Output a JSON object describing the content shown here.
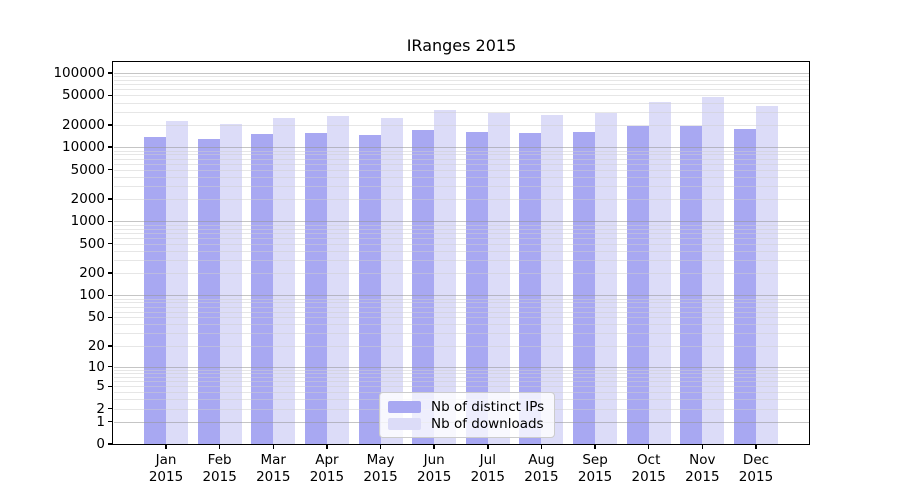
{
  "title": "IRanges 2015",
  "chart_data": {
    "type": "bar",
    "title": "IRanges 2015",
    "categories": [
      "Jan",
      "Feb",
      "Mar",
      "Apr",
      "May",
      "Jun",
      "Jul",
      "Aug",
      "Sep",
      "Oct",
      "Nov",
      "Dec"
    ],
    "year": "2015",
    "series": [
      {
        "name": "Nb of distinct IPs",
        "color": "#a8a8f2",
        "values": [
          13800,
          12800,
          14900,
          15600,
          14700,
          16800,
          16200,
          15400,
          16000,
          19500,
          19500,
          17500
        ]
      },
      {
        "name": "Nb of downloads",
        "color": "#dcdcf8",
        "values": [
          22500,
          20500,
          25000,
          26300,
          25000,
          31500,
          28500,
          27500,
          28700,
          40500,
          47000,
          36000
        ]
      }
    ],
    "y_scale": "log1p",
    "y_ticks": [
      0,
      1,
      2,
      5,
      10,
      20,
      50,
      100,
      200,
      500,
      1000,
      2000,
      5000,
      10000,
      20000,
      50000,
      100000
    ],
    "ylim": [
      0,
      140000
    ],
    "grid": "minor horizontal gridlines at 2-9 mantissas, major at powers of 10, drawn over bars",
    "legend_position": "bottom-center",
    "xlabel": "",
    "ylabel": "",
    "colors": {
      "axis": "#000000",
      "grid_minor": "#e6e6e6",
      "grid_major": "#cacaca",
      "background": "#ffffff"
    }
  }
}
